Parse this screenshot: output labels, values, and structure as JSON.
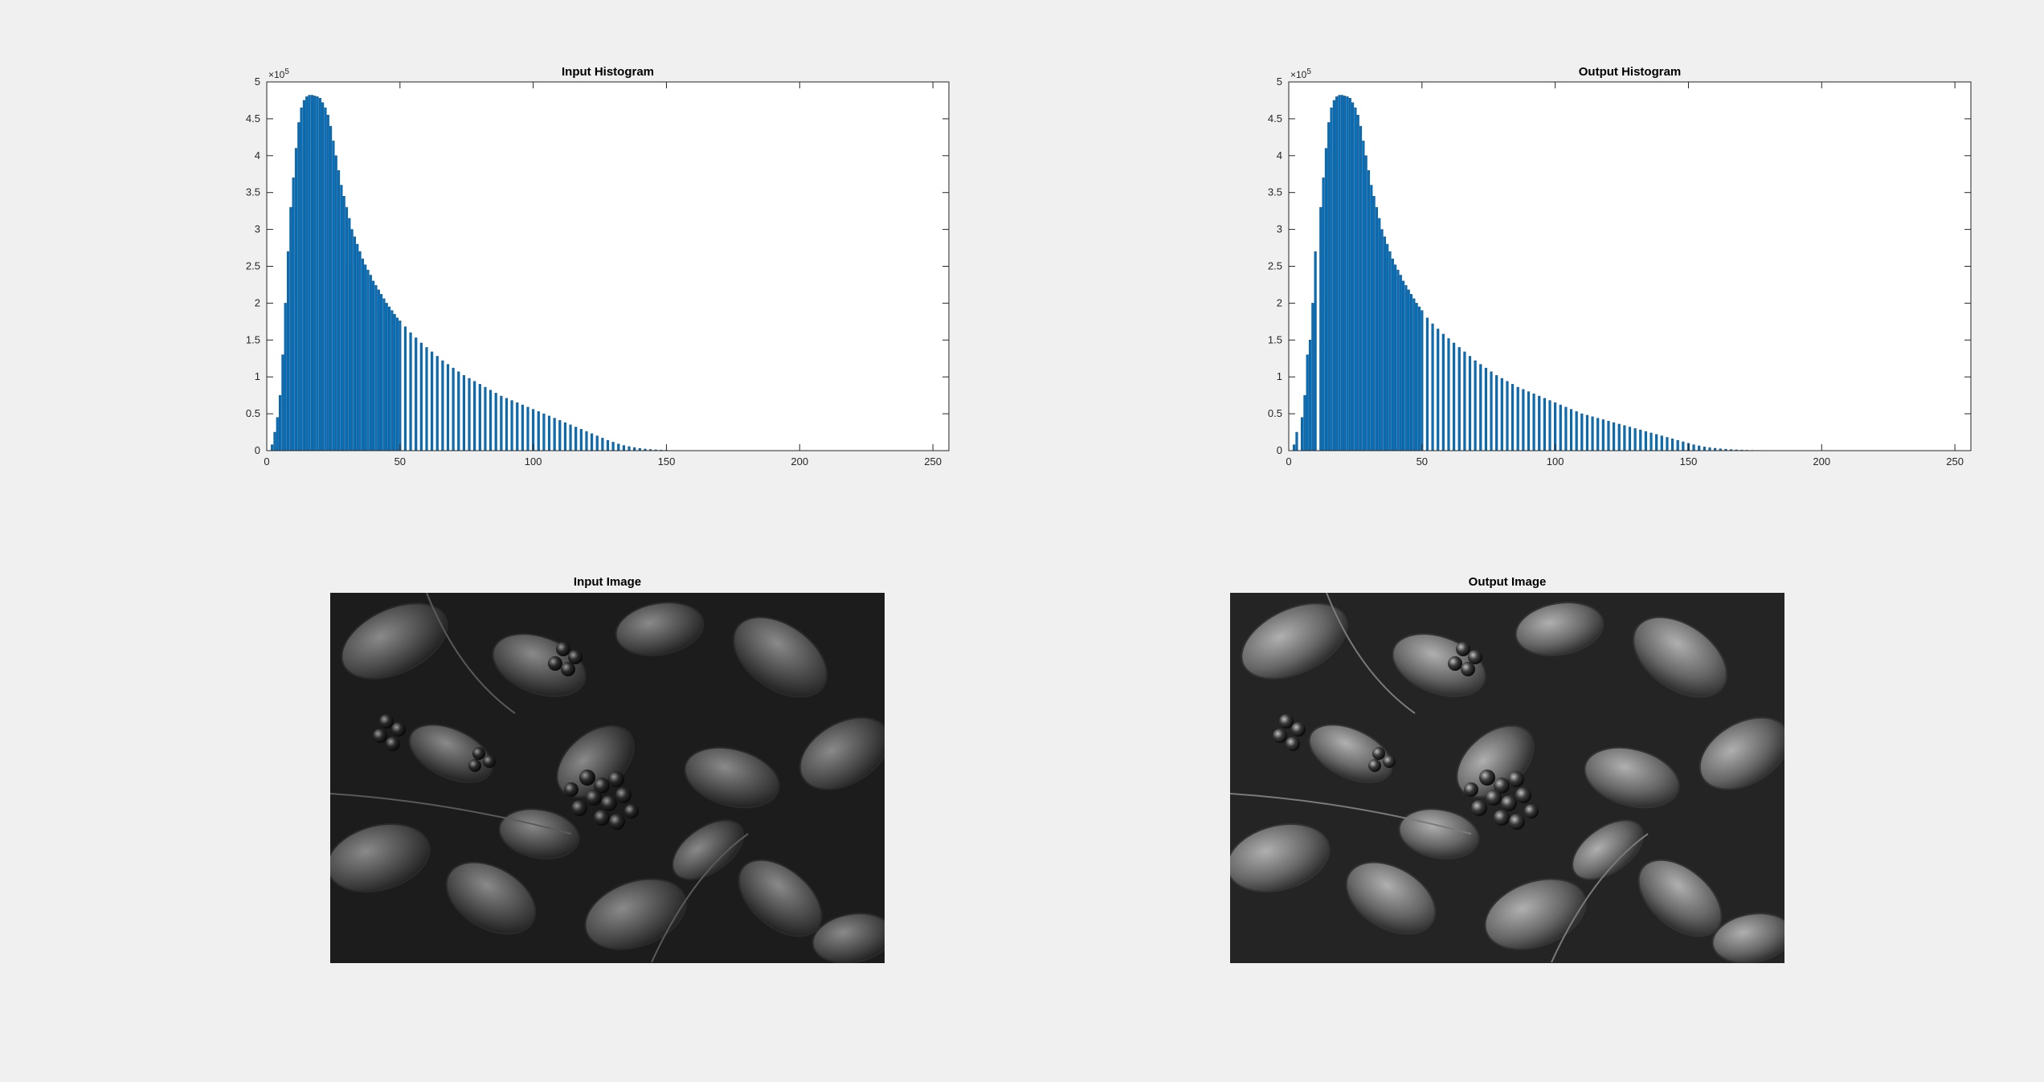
{
  "figure": {
    "background": "#f0f0f0",
    "bar_color": "#0072bd"
  },
  "chart_data": [
    {
      "type": "bar",
      "id": "input-histogram",
      "title": "Input Histogram",
      "xlabel": "",
      "ylabel": "",
      "xlim": [
        0,
        256
      ],
      "ylim": [
        0,
        500000
      ],
      "xticks": [
        "0",
        "50",
        "100",
        "150",
        "200",
        "250"
      ],
      "yticks": [
        "0",
        "0.5",
        "1",
        "1.5",
        "2",
        "2.5",
        "3",
        "3.5",
        "4",
        "4.5",
        "5"
      ],
      "y_exponent": "×10",
      "y_exponent_power": "5",
      "grid": false,
      "x": [
        0,
        1,
        2,
        3,
        4,
        5,
        6,
        7,
        8,
        9,
        10,
        11,
        12,
        13,
        14,
        15,
        16,
        17,
        18,
        19,
        20,
        21,
        22,
        23,
        24,
        25,
        26,
        27,
        28,
        29,
        30,
        31,
        32,
        33,
        34,
        35,
        36,
        37,
        38,
        39,
        40,
        41,
        42,
        43,
        44,
        45,
        46,
        47,
        48,
        49,
        50,
        52,
        54,
        56,
        58,
        60,
        62,
        64,
        66,
        68,
        70,
        72,
        74,
        76,
        78,
        80,
        82,
        84,
        86,
        88,
        90,
        92,
        94,
        96,
        98,
        100,
        102,
        104,
        106,
        108,
        110,
        112,
        114,
        116,
        118,
        120,
        122,
        124,
        126,
        128,
        130,
        132,
        134,
        136,
        138,
        140,
        142,
        144,
        146,
        148,
        150,
        152,
        154,
        156,
        158,
        160,
        162,
        164,
        166,
        168,
        170,
        172,
        174,
        176,
        178,
        180
      ],
      "values": [
        0,
        0,
        8000,
        25000,
        45000,
        75000,
        130000,
        200000,
        270000,
        330000,
        370000,
        410000,
        445000,
        465000,
        475000,
        480000,
        482000,
        482000,
        481000,
        480000,
        478000,
        472000,
        465000,
        455000,
        440000,
        420000,
        400000,
        380000,
        360000,
        345000,
        330000,
        315000,
        300000,
        290000,
        280000,
        270000,
        260000,
        252000,
        245000,
        238000,
        230000,
        224000,
        218000,
        212000,
        206000,
        200000,
        195000,
        190000,
        185000,
        180000,
        176000,
        168000,
        160000,
        153000,
        146000,
        140000,
        134000,
        128000,
        122000,
        117000,
        112000,
        107000,
        102000,
        98000,
        94000,
        90000,
        86000,
        82000,
        78000,
        74000,
        71000,
        68000,
        65000,
        62000,
        59000,
        56000,
        53000,
        50000,
        47000,
        44000,
        41000,
        38000,
        35000,
        32000,
        29000,
        26000,
        23000,
        20000,
        17000,
        14000,
        11500,
        9000,
        7000,
        5500,
        4200,
        3000,
        2200,
        1600,
        1100,
        800,
        500,
        300,
        200,
        150,
        100,
        70,
        50,
        30,
        20,
        10,
        5,
        0,
        0,
        0,
        0,
        0
      ]
    },
    {
      "type": "bar",
      "id": "output-histogram",
      "title": "Output Histogram",
      "xlabel": "",
      "ylabel": "",
      "xlim": [
        0,
        256
      ],
      "ylim": [
        0,
        500000
      ],
      "xticks": [
        "0",
        "50",
        "100",
        "150",
        "200",
        "250"
      ],
      "yticks": [
        "0",
        "0.5",
        "1",
        "1.5",
        "2",
        "2.5",
        "3",
        "3.5",
        "4",
        "4.5",
        "5"
      ],
      "y_exponent": "×10",
      "y_exponent_power": "5",
      "grid": false,
      "x": [
        2,
        3,
        5,
        6,
        7,
        8,
        9,
        10,
        12,
        13,
        14,
        15,
        16,
        17,
        18,
        19,
        20,
        21,
        22,
        23,
        24,
        25,
        26,
        27,
        28,
        29,
        30,
        31,
        32,
        33,
        34,
        35,
        36,
        37,
        38,
        39,
        40,
        41,
        42,
        43,
        44,
        45,
        46,
        47,
        48,
        49,
        50,
        52,
        54,
        56,
        58,
        60,
        62,
        64,
        66,
        68,
        70,
        72,
        74,
        76,
        78,
        80,
        82,
        84,
        86,
        88,
        90,
        92,
        94,
        96,
        98,
        100,
        102,
        104,
        106,
        108,
        110,
        112,
        114,
        116,
        118,
        120,
        122,
        124,
        126,
        128,
        130,
        132,
        134,
        136,
        138,
        140,
        142,
        144,
        146,
        148,
        150,
        152,
        154,
        156,
        158,
        160,
        162,
        164,
        166,
        168,
        170,
        172,
        174,
        176,
        178,
        180,
        182,
        184,
        186,
        188,
        190,
        192,
        194,
        196,
        198,
        200,
        202,
        204,
        206,
        208,
        210,
        212,
        214,
        216,
        218,
        220
      ],
      "values": [
        8000,
        25000,
        45000,
        75000,
        130000,
        150000,
        200000,
        270000,
        330000,
        370000,
        410000,
        445000,
        465000,
        475000,
        480000,
        482000,
        482000,
        481000,
        480000,
        478000,
        472000,
        465000,
        455000,
        440000,
        420000,
        400000,
        380000,
        360000,
        345000,
        330000,
        315000,
        300000,
        290000,
        280000,
        270000,
        260000,
        252000,
        245000,
        238000,
        230000,
        224000,
        218000,
        212000,
        206000,
        200000,
        195000,
        190000,
        180000,
        172000,
        165000,
        158000,
        152000,
        146000,
        140000,
        134000,
        128000,
        122000,
        117000,
        112000,
        107000,
        102000,
        98000,
        94000,
        90000,
        86000,
        83000,
        80000,
        77000,
        74000,
        71000,
        68000,
        65000,
        62000,
        59000,
        56000,
        53000,
        50000,
        48000,
        46000,
        44000,
        42000,
        40000,
        38000,
        36000,
        34000,
        32000,
        30000,
        28000,
        26000,
        24000,
        22000,
        20000,
        18000,
        16000,
        14000,
        12000,
        10000,
        8000,
        6500,
        5000,
        4000,
        3200,
        2500,
        2000,
        1500,
        1100,
        800,
        600,
        400,
        300,
        200,
        150,
        100,
        70,
        50,
        30,
        20,
        10,
        5,
        0,
        0,
        0,
        0,
        0,
        0,
        0,
        0,
        0,
        0,
        0,
        0,
        0
      ]
    }
  ],
  "images": [
    {
      "title": "Input Image"
    },
    {
      "title": "Output Image"
    }
  ]
}
